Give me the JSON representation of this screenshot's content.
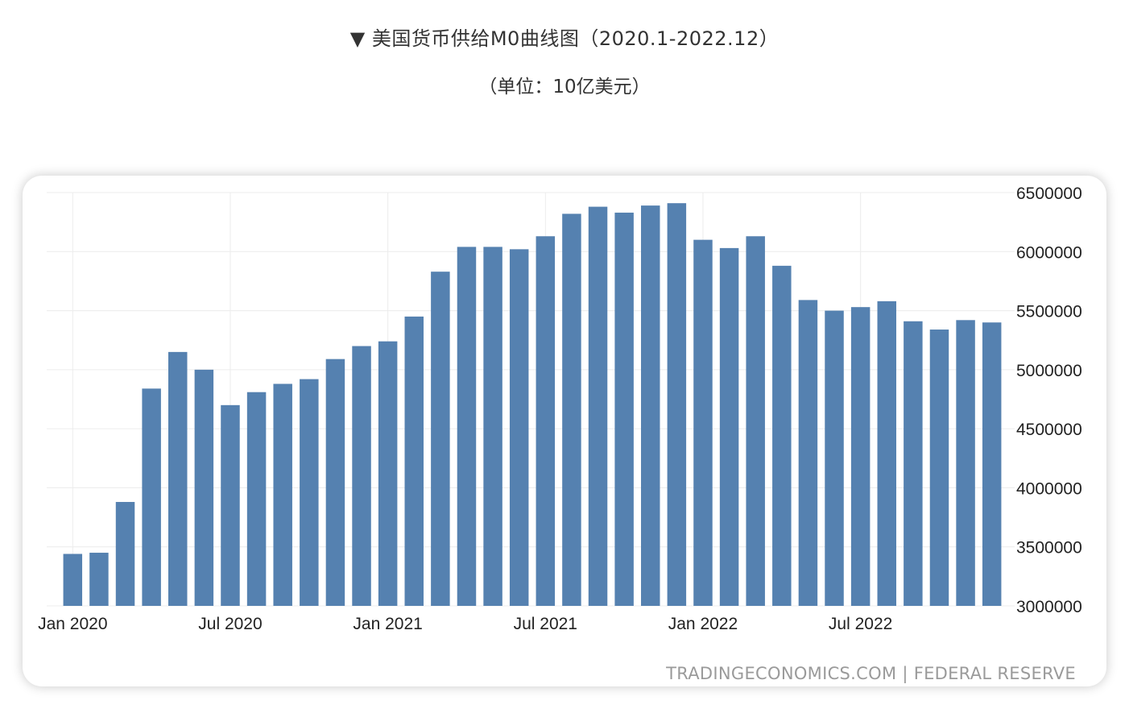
{
  "header": {
    "title": "▼ 美国货币供给M0曲线图（2020.1-2022.12）",
    "subtitle": "（单位：10亿美元）"
  },
  "colors": {
    "bar": "#5581b0",
    "grid": "#ececec",
    "background": "#ffffff"
  },
  "chart_data": {
    "type": "bar",
    "grid": true,
    "y_axis_position": "right",
    "ylim": [
      3000000,
      6500000
    ],
    "y_ticks": [
      3000000,
      3500000,
      4000000,
      4500000,
      5000000,
      5500000,
      6000000,
      6500000
    ],
    "y_tick_labels": [
      "3000000",
      "3500000",
      "4000000",
      "4500000",
      "5000000",
      "5500000",
      "6000000",
      "6500000"
    ],
    "x_tick_labels": [
      {
        "label": "Jan 2020",
        "index": 0
      },
      {
        "label": "Jul 2020",
        "index": 6
      },
      {
        "label": "Jan 2021",
        "index": 12
      },
      {
        "label": "Jul 2021",
        "index": 18
      },
      {
        "label": "Jan 2022",
        "index": 24
      },
      {
        "label": "Jul 2022",
        "index": 30
      }
    ],
    "categories": [
      "2020-01",
      "2020-02",
      "2020-03",
      "2020-04",
      "2020-05",
      "2020-06",
      "2020-07",
      "2020-08",
      "2020-09",
      "2020-10",
      "2020-11",
      "2020-12",
      "2021-01",
      "2021-02",
      "2021-03",
      "2021-04",
      "2021-05",
      "2021-06",
      "2021-07",
      "2021-08",
      "2021-09",
      "2021-10",
      "2021-11",
      "2021-12",
      "2022-01",
      "2022-02",
      "2022-03",
      "2022-04",
      "2022-05",
      "2022-06",
      "2022-07",
      "2022-08",
      "2022-09",
      "2022-10",
      "2022-11",
      "2022-12"
    ],
    "values": [
      3440000,
      3450000,
      3880000,
      4840000,
      5150000,
      5000000,
      4700000,
      4810000,
      4880000,
      4920000,
      5090000,
      5200000,
      5240000,
      5450000,
      5830000,
      6040000,
      6040000,
      6020000,
      6130000,
      6320000,
      6380000,
      6330000,
      6390000,
      6410000,
      6100000,
      6030000,
      6130000,
      5880000,
      5590000,
      5500000,
      5530000,
      5580000,
      5410000,
      5340000,
      5420000,
      5400000
    ],
    "source": "TRADINGECONOMICS.COM  |  FEDERAL RESERVE"
  }
}
